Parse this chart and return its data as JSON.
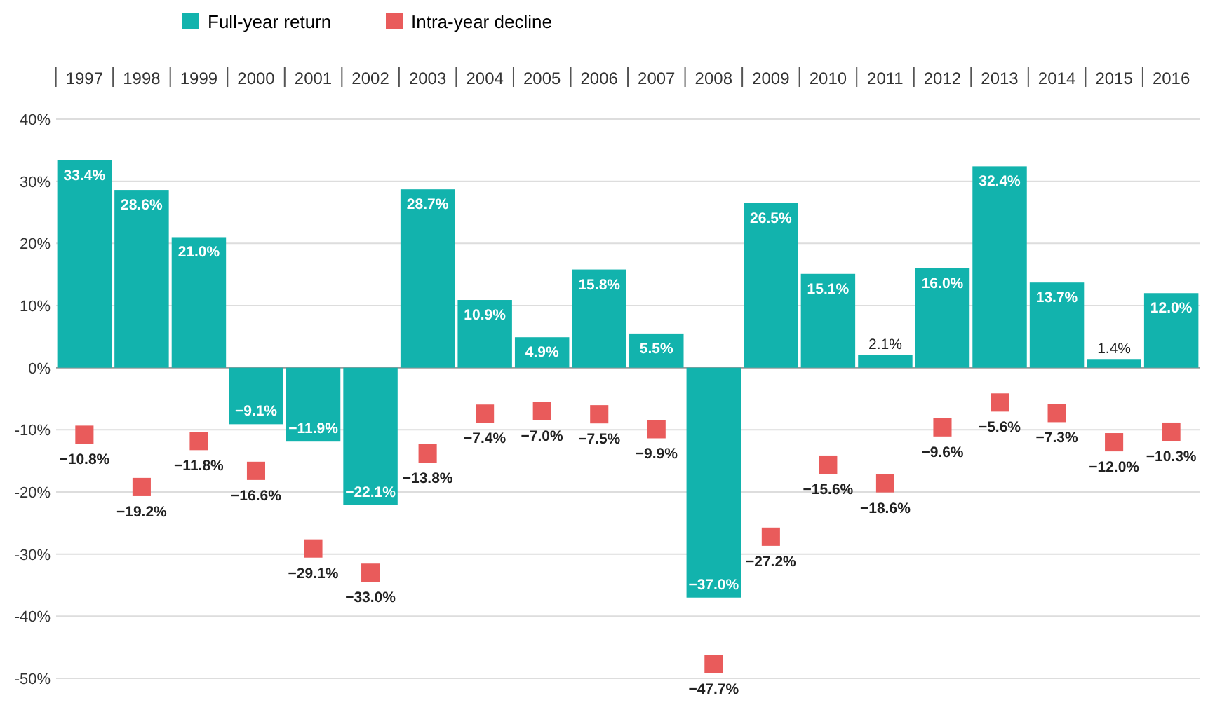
{
  "chart_data": {
    "type": "bar",
    "categories": [
      "1997",
      "1998",
      "1999",
      "2000",
      "2001",
      "2002",
      "2003",
      "2004",
      "2005",
      "2006",
      "2007",
      "2008",
      "2009",
      "2010",
      "2011",
      "2012",
      "2013",
      "2014",
      "2015",
      "2016"
    ],
    "series": [
      {
        "name": "Full-year return",
        "color": "#12b3ad",
        "values": [
          33.4,
          28.6,
          21.0,
          -9.1,
          -11.9,
          -22.1,
          28.7,
          10.9,
          4.9,
          15.8,
          5.5,
          -37.0,
          26.5,
          15.1,
          2.1,
          16.0,
          32.4,
          13.7,
          1.4,
          12.0
        ],
        "value_labels": [
          "33.4%",
          "28.6%",
          "21.0%",
          "−9.1%",
          "−11.9%",
          "−22.1%",
          "28.7%",
          "10.9%",
          "4.9%",
          "15.8%",
          "5.5%",
          "−37.0%",
          "26.5%",
          "15.1%",
          "2.1%",
          "16.0%",
          "32.4%",
          "13.7%",
          "1.4%",
          "12.0%"
        ]
      },
      {
        "name": "Intra-year decline",
        "type": "scatter",
        "color": "#e95b5b",
        "marker": "square",
        "values": [
          -10.8,
          -19.2,
          -11.8,
          -16.6,
          -29.1,
          -33.0,
          -13.8,
          -7.4,
          -7.0,
          -7.5,
          -9.9,
          -47.7,
          -27.2,
          -15.6,
          -18.6,
          -9.6,
          -5.6,
          -7.3,
          -12.0,
          -10.3
        ],
        "value_labels": [
          "−10.8%",
          "−19.2%",
          "−11.8%",
          "−16.6%",
          "−29.1%",
          "−33.0%",
          "−13.8%",
          "−7.4%",
          "−7.0%",
          "−7.5%",
          "−9.9%",
          "−47.7%",
          "−27.2%",
          "−15.6%",
          "−18.6%",
          "−9.6%",
          "−5.6%",
          "−7.3%",
          "−12.0%",
          "−10.3%"
        ]
      }
    ],
    "ylim": [
      -50,
      40
    ],
    "yticks": [
      {
        "value": 40,
        "label": "40%"
      },
      {
        "value": 30,
        "label": "30%"
      },
      {
        "value": 20,
        "label": "20%"
      },
      {
        "value": 10,
        "label": "10%"
      },
      {
        "value": 0,
        "label": "0%"
      },
      {
        "value": -10,
        "label": "-10%"
      },
      {
        "value": -20,
        "label": "-20%"
      },
      {
        "value": -30,
        "label": "-30%"
      },
      {
        "value": -40,
        "label": "-40%"
      },
      {
        "value": -50,
        "label": "-50%"
      }
    ],
    "grid": "y",
    "legend": "top left"
  }
}
